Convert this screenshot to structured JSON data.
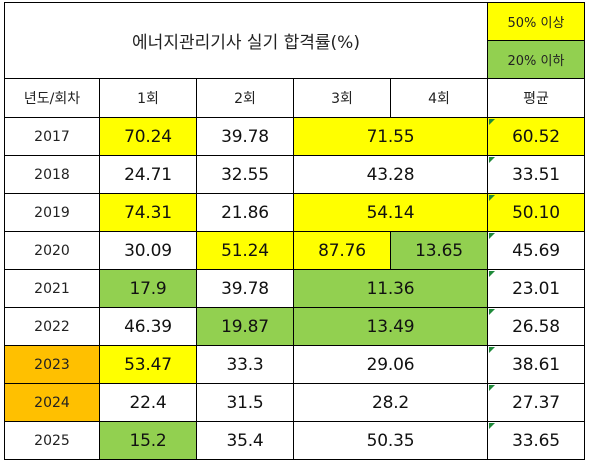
{
  "title": "에너지관리기사 실기 합격률(%)",
  "legend": [
    {
      "label": "50% 이상",
      "color": "#ffff00"
    },
    {
      "label": "20% 이하",
      "color": "#92d050"
    }
  ],
  "headers": {
    "year": "년도/회차",
    "r1": "1회",
    "r2": "2회",
    "r3": "3회",
    "r4": "4회",
    "avg": "평균"
  },
  "colors": {
    "high": "#ffff00",
    "low": "#92d050",
    "orange": "#ffc000",
    "white": "#ffffff",
    "flag": "#1f8a3a"
  },
  "rows": [
    {
      "year": "2017",
      "r1": "70.24",
      "r2": "39.78",
      "r34": "71.55",
      "avg": "60.52"
    },
    {
      "year": "2018",
      "r1": "24.71",
      "r2": "32.55",
      "r34": "43.28",
      "avg": "33.51"
    },
    {
      "year": "2019",
      "r1": "74.31",
      "r2": "21.86",
      "r34": "54.14",
      "avg": "50.10"
    },
    {
      "year": "2020",
      "r1": "30.09",
      "r2": "51.24",
      "r3": "87.76",
      "r4": "13.65",
      "avg": "45.69"
    },
    {
      "year": "2021",
      "r1": "17.9",
      "r2": "39.78",
      "r34": "11.36",
      "avg": "23.01"
    },
    {
      "year": "2022",
      "r1": "46.39",
      "r2": "19.87",
      "r34": "13.49",
      "avg": "26.58"
    },
    {
      "year": "2023",
      "r1": "53.47",
      "r2": "33.3",
      "r34": "29.06",
      "avg": "38.61"
    },
    {
      "year": "2024",
      "r1": "22.4",
      "r2": "31.5",
      "r34": "28.2",
      "avg": "27.37"
    },
    {
      "year": "2025",
      "r1": "15.2",
      "r2": "35.4",
      "r34": "50.35",
      "avg": "33.65"
    }
  ]
}
